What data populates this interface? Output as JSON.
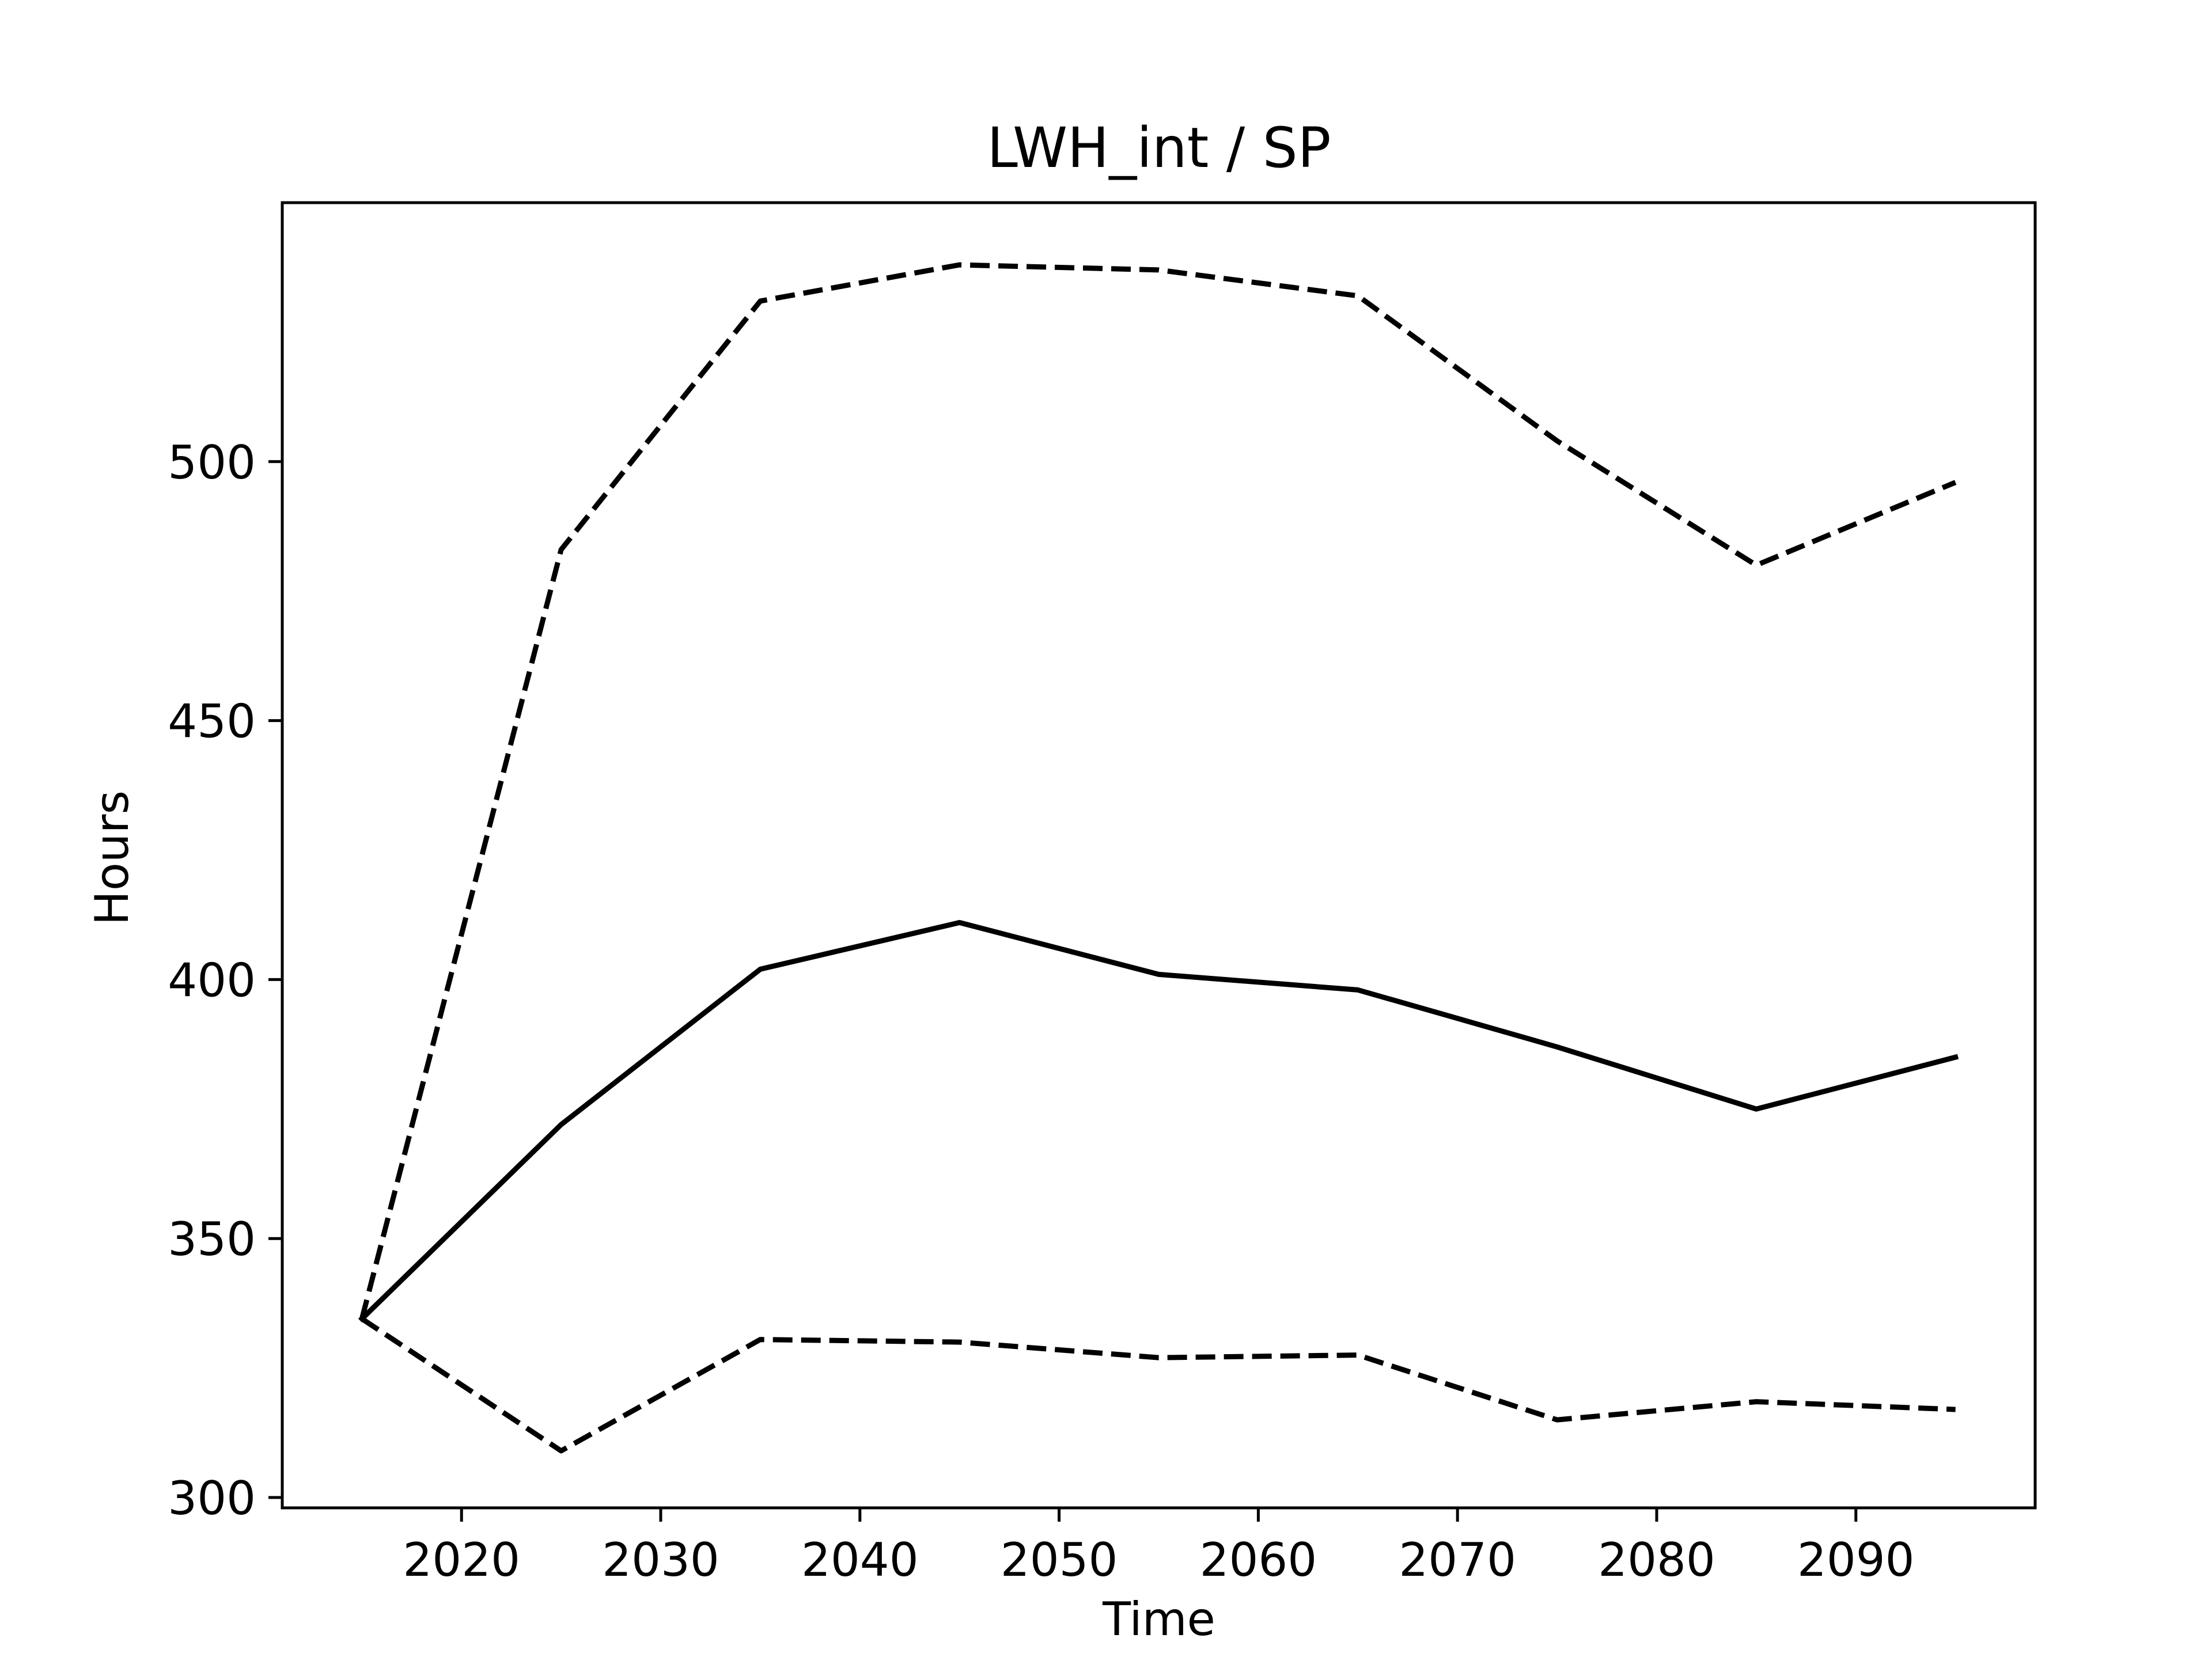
{
  "chart_data": {
    "type": "line",
    "title": "LWH_int / SP",
    "xlabel": "Time",
    "ylabel": "Hours",
    "xlim": [
      2011,
      2099
    ],
    "ylim": [
      298,
      550
    ],
    "x_ticks": [
      2020,
      2030,
      2040,
      2050,
      2060,
      2070,
      2080,
      2090
    ],
    "y_ticks": [
      300,
      350,
      400,
      450,
      500
    ],
    "grid": false,
    "legend": "none",
    "x": [
      2015,
      2025,
      2035,
      2045,
      2055,
      2065,
      2075,
      2085,
      2095
    ],
    "series": [
      {
        "style": "dashed",
        "color": "#000000",
        "values": [
          334.5,
          483,
          531,
          538,
          537,
          532,
          504,
          480,
          496
        ]
      },
      {
        "style": "solid",
        "color": "#000000",
        "values": [
          334.5,
          372,
          402,
          411,
          401,
          398,
          387,
          375,
          385
        ]
      },
      {
        "style": "dashed",
        "color": "#000000",
        "values": [
          334.5,
          309,
          330.5,
          330,
          327,
          327.5,
          315,
          318.5,
          317
        ]
      }
    ]
  }
}
